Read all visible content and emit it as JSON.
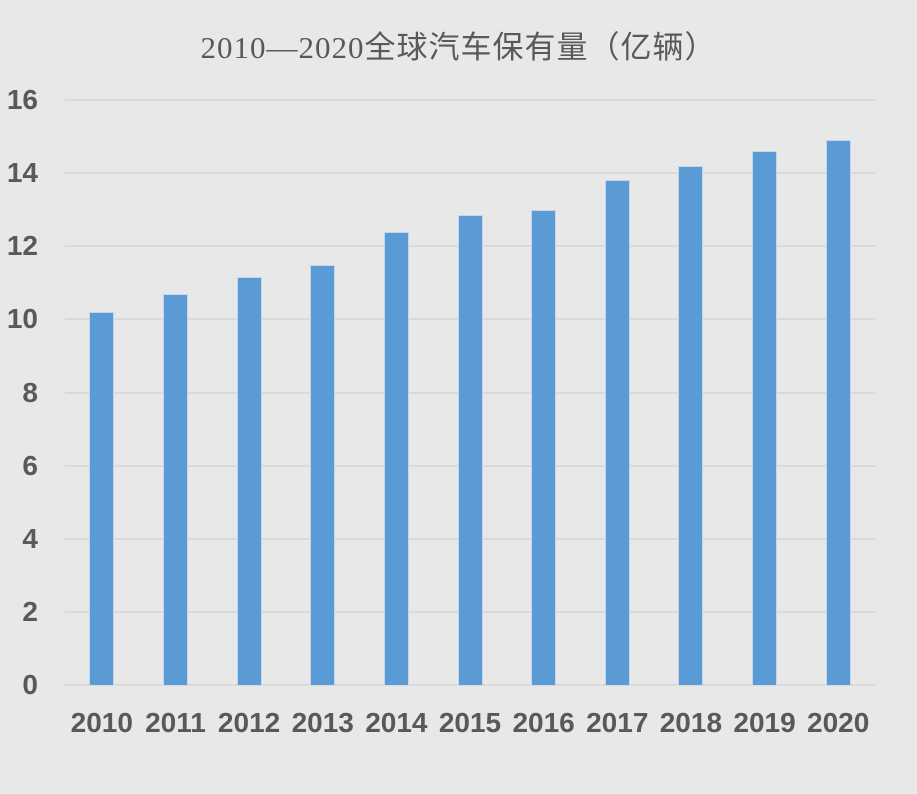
{
  "chart_data": {
    "type": "bar",
    "title": "2010—2020全球汽车保有量（亿辆）",
    "categories": [
      "2010",
      "2011",
      "2012",
      "2013",
      "2014",
      "2015",
      "2016",
      "2017",
      "2018",
      "2019",
      "2020"
    ],
    "values": [
      10.2,
      10.7,
      11.15,
      11.5,
      12.4,
      12.85,
      13.0,
      13.8,
      14.2,
      14.6,
      14.9
    ],
    "series_name": "全球汽车保有量",
    "xlabel": "",
    "ylabel": "",
    "ylim": [
      0,
      16
    ],
    "yticks": [
      0,
      2,
      4,
      6,
      8,
      10,
      12,
      14,
      16
    ],
    "grid": true,
    "legend_position": "none",
    "colors": {
      "bar": "#5b9bd5",
      "bar_border": "#c3d6ec",
      "grid": "#dadada",
      "text": "#595959",
      "title_text": "#595959",
      "background": "#e8e8e8"
    }
  }
}
